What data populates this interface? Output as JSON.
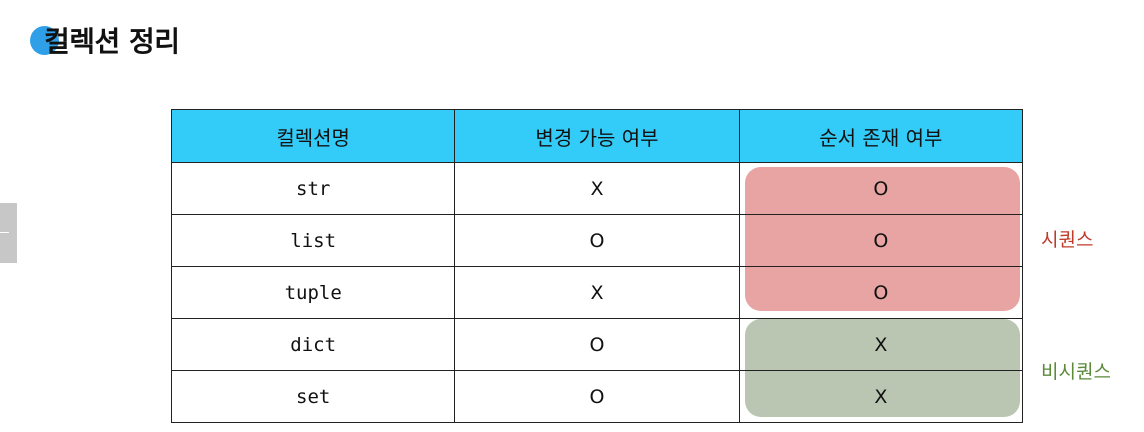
{
  "title": "컬렉션 정리",
  "table": {
    "headers": [
      "컬렉션명",
      "변경 가능 여부",
      "순서 존재 여부"
    ],
    "rows": [
      {
        "name": "str",
        "mutable": "X",
        "ordered": "O"
      },
      {
        "name": "list",
        "mutable": "O",
        "ordered": "O"
      },
      {
        "name": "tuple",
        "mutable": "X",
        "ordered": "O"
      },
      {
        "name": "dict",
        "mutable": "O",
        "ordered": "X"
      },
      {
        "name": "set",
        "mutable": "O",
        "ordered": "X"
      }
    ]
  },
  "groups": {
    "sequence": {
      "label": "시퀀스",
      "color": "#c0392b",
      "fill": "#e8a3a3"
    },
    "non_sequence": {
      "label": "비시퀀스",
      "color": "#5a8a3a",
      "fill": "#bac6b1"
    }
  },
  "colors": {
    "header_bg": "#33ccf9",
    "title_dot": "#2fa0e8"
  }
}
